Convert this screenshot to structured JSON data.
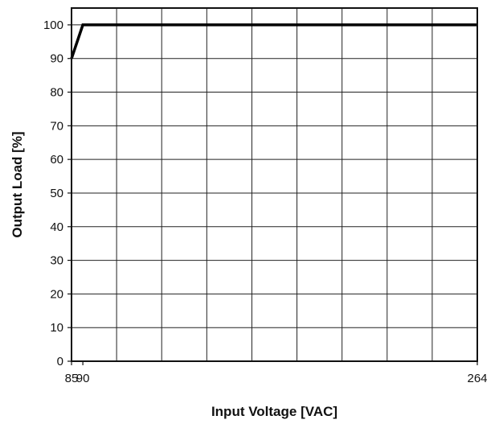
{
  "chart_data": {
    "type": "line",
    "title": "",
    "xlabel": "Input Voltage [VAC]",
    "ylabel": "Output Load [%]",
    "x_ticks": [
      85,
      90,
      264
    ],
    "y_ticks": [
      0,
      10,
      20,
      30,
      40,
      50,
      60,
      70,
      80,
      90,
      100
    ],
    "xlim": [
      85,
      264
    ],
    "ylim": [
      0,
      105
    ],
    "grid": true,
    "x_grid_divisions": 9,
    "series": [
      {
        "x": [
          85,
          90,
          264
        ],
        "y": [
          90,
          100,
          100
        ]
      }
    ],
    "colors": {
      "line": "#000000",
      "grid": "#222222",
      "axes": "#111111"
    }
  }
}
